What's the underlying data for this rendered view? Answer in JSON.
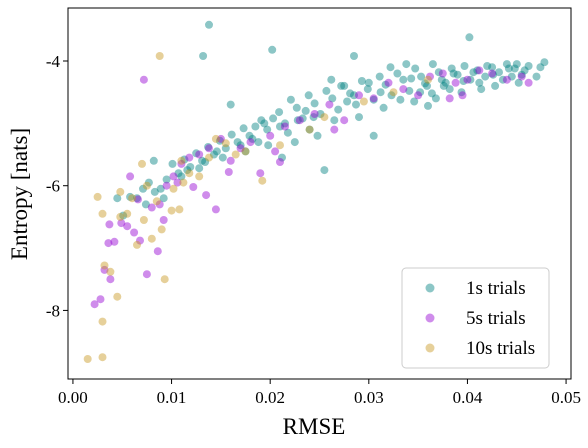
{
  "chart_data": {
    "type": "scatter",
    "title": "",
    "xlabel": "RMSE",
    "ylabel": "Entropy [nats]",
    "xlim": [
      -0.0005,
      0.0505
    ],
    "ylim": [
      -9.1,
      -3.15
    ],
    "xticks": [
      0.0,
      0.01,
      0.02,
      0.03,
      0.04,
      0.05
    ],
    "xtick_labels": [
      "0.00",
      "0.01",
      "0.02",
      "0.03",
      "0.04",
      "0.05"
    ],
    "yticks": [
      -8,
      -6,
      -4
    ],
    "ytick_labels": [
      "-8",
      "-6",
      "-4"
    ],
    "grid": false,
    "legend_position": "lower-right",
    "marker_alpha": 0.45,
    "series": [
      {
        "name": "1s trials",
        "color": "#008080",
        "points": [
          [
            0.0138,
            -3.42
          ],
          [
            0.0132,
            -3.92
          ],
          [
            0.0202,
            -3.82
          ],
          [
            0.0285,
            -3.92
          ],
          [
            0.0402,
            -3.62
          ],
          [
            0.0478,
            -4.02
          ],
          [
            0.0462,
            -4.08
          ],
          [
            0.0455,
            -4.22
          ],
          [
            0.0448,
            -4.12
          ],
          [
            0.044,
            -4.05
          ],
          [
            0.0432,
            -4.18
          ],
          [
            0.0425,
            -4.1
          ],
          [
            0.0418,
            -4.25
          ],
          [
            0.041,
            -4.15
          ],
          [
            0.0403,
            -4.3
          ],
          [
            0.0397,
            -4.08
          ],
          [
            0.039,
            -4.22
          ],
          [
            0.0384,
            -4.12
          ],
          [
            0.0378,
            -4.35
          ],
          [
            0.0371,
            -4.18
          ],
          [
            0.0365,
            -4.05
          ],
          [
            0.0359,
            -4.4
          ],
          [
            0.0353,
            -4.25
          ],
          [
            0.0347,
            -4.12
          ],
          [
            0.0341,
            -4.48
          ],
          [
            0.0335,
            -4.3
          ],
          [
            0.0329,
            -4.2
          ],
          [
            0.0323,
            -4.55
          ],
          [
            0.0317,
            -4.38
          ],
          [
            0.0311,
            -4.25
          ],
          [
            0.0305,
            -4.62
          ],
          [
            0.0299,
            -4.45
          ],
          [
            0.0293,
            -4.32
          ],
          [
            0.0287,
            -4.7
          ],
          [
            0.0281,
            -4.52
          ],
          [
            0.0275,
            -4.4
          ],
          [
            0.0269,
            -4.78
          ],
          [
            0.0263,
            -4.6
          ],
          [
            0.0257,
            -4.48
          ],
          [
            0.0251,
            -4.85
          ],
          [
            0.0245,
            -4.68
          ],
          [
            0.0239,
            -4.55
          ],
          [
            0.0233,
            -4.92
          ],
          [
            0.0227,
            -4.75
          ],
          [
            0.0221,
            -4.62
          ],
          [
            0.0215,
            -5.0
          ],
          [
            0.0209,
            -4.82
          ],
          [
            0.0203,
            -4.92
          ],
          [
            0.0197,
            -5.1
          ],
          [
            0.0191,
            -4.95
          ],
          [
            0.0185,
            -5.05
          ],
          [
            0.0179,
            -5.2
          ],
          [
            0.0173,
            -5.08
          ],
          [
            0.0167,
            -5.3
          ],
          [
            0.0161,
            -5.18
          ],
          [
            0.0155,
            -5.4
          ],
          [
            0.0149,
            -5.28
          ],
          [
            0.0143,
            -5.5
          ],
          [
            0.0137,
            -5.38
          ],
          [
            0.0131,
            -5.6
          ],
          [
            0.0125,
            -5.48
          ],
          [
            0.0119,
            -5.7
          ],
          [
            0.0113,
            -5.58
          ],
          [
            0.0107,
            -5.8
          ],
          [
            0.0101,
            -5.65
          ],
          [
            0.0095,
            -5.9
          ],
          [
            0.0089,
            -6.05
          ],
          [
            0.0083,
            -6.1
          ],
          [
            0.0077,
            -5.95
          ],
          [
            0.0071,
            -6.05
          ],
          [
            0.0065,
            -6.2
          ],
          [
            0.0058,
            -6.18
          ],
          [
            0.0051,
            -6.48
          ],
          [
            0.0045,
            -6.2
          ],
          [
            0.0082,
            -5.6
          ],
          [
            0.016,
            -4.7
          ],
          [
            0.0212,
            -5.55
          ],
          [
            0.0225,
            -5.3
          ],
          [
            0.0255,
            -5.75
          ],
          [
            0.0305,
            -5.2
          ],
          [
            0.0188,
            -5.3
          ],
          [
            0.0248,
            -5.2
          ],
          [
            0.0272,
            -4.4
          ],
          [
            0.0285,
            -4.55
          ],
          [
            0.03,
            -4.35
          ],
          [
            0.0322,
            -4.1
          ],
          [
            0.0338,
            -4.05
          ],
          [
            0.0352,
            -4.5
          ],
          [
            0.0368,
            -4.6
          ],
          [
            0.0382,
            -4.45
          ],
          [
            0.0394,
            -4.5
          ],
          [
            0.0412,
            -4.35
          ],
          [
            0.0428,
            -4.4
          ],
          [
            0.0445,
            -4.25
          ],
          [
            0.0458,
            -4.15
          ],
          [
            0.047,
            -4.25
          ],
          [
            0.036,
            -4.72
          ],
          [
            0.0346,
            -4.65
          ],
          [
            0.0315,
            -4.75
          ],
          [
            0.029,
            -4.9
          ],
          [
            0.0265,
            -4.95
          ],
          [
            0.024,
            -5.1
          ],
          [
            0.0218,
            -5.15
          ],
          [
            0.0198,
            -5.35
          ],
          [
            0.0175,
            -5.45
          ],
          [
            0.0152,
            -5.55
          ],
          [
            0.0128,
            -5.72
          ],
          [
            0.011,
            -5.85
          ],
          [
            0.0092,
            -6.2
          ],
          [
            0.0074,
            -6.3
          ],
          [
            0.0262,
            -4.3
          ],
          [
            0.0278,
            -4.65
          ],
          [
            0.0312,
            -4.5
          ],
          [
            0.0332,
            -4.62
          ],
          [
            0.0374,
            -4.3
          ],
          [
            0.0386,
            -4.2
          ],
          [
            0.0406,
            -4.18
          ],
          [
            0.042,
            -4.08
          ],
          [
            0.0436,
            -4.3
          ],
          [
            0.0452,
            -4.35
          ],
          [
            0.0228,
            -4.95
          ],
          [
            0.0236,
            -4.8
          ],
          [
            0.0244,
            -4.9
          ],
          [
            0.021,
            -5.05
          ],
          [
            0.0194,
            -5.0
          ],
          [
            0.0182,
            -5.25
          ],
          [
            0.017,
            -5.35
          ],
          [
            0.0146,
            -5.45
          ],
          [
            0.0134,
            -5.62
          ],
          [
            0.0116,
            -5.75
          ],
          [
            0.0343,
            -4.28
          ],
          [
            0.0357,
            -4.36
          ],
          [
            0.0364,
            -4.52
          ],
          [
            0.0376,
            -4.4
          ],
          [
            0.0396,
            -4.32
          ],
          [
            0.0414,
            -4.45
          ],
          [
            0.0426,
            -4.22
          ],
          [
            0.0442,
            -4.12
          ],
          [
            0.045,
            -4.05
          ],
          [
            0.0474,
            -4.1
          ]
        ]
      },
      {
        "name": "5s trials",
        "color": "#9400D3",
        "points": [
          [
            0.0072,
            -4.3
          ],
          [
            0.0022,
            -7.9
          ],
          [
            0.0028,
            -7.82
          ],
          [
            0.0032,
            -7.35
          ],
          [
            0.0038,
            -7.5
          ],
          [
            0.0036,
            -6.92
          ],
          [
            0.0042,
            -6.9
          ],
          [
            0.0037,
            -6.62
          ],
          [
            0.0049,
            -6.6
          ],
          [
            0.0055,
            -6.65
          ],
          [
            0.0062,
            -6.75
          ],
          [
            0.0068,
            -6.88
          ],
          [
            0.0075,
            -7.42
          ],
          [
            0.0086,
            -7.05
          ],
          [
            0.008,
            -6.35
          ],
          [
            0.0088,
            -6.3
          ],
          [
            0.0095,
            -6.0
          ],
          [
            0.0102,
            -5.85
          ],
          [
            0.011,
            -5.65
          ],
          [
            0.0118,
            -5.55
          ],
          [
            0.0128,
            -5.5
          ],
          [
            0.0138,
            -5.4
          ],
          [
            0.0145,
            -6.38
          ],
          [
            0.015,
            -5.25
          ],
          [
            0.016,
            -5.6
          ],
          [
            0.017,
            -5.4
          ],
          [
            0.018,
            -5.3
          ],
          [
            0.019,
            -5.8
          ],
          [
            0.0205,
            -5.45
          ],
          [
            0.0215,
            -5.05
          ],
          [
            0.023,
            -4.95
          ],
          [
            0.0245,
            -4.85
          ],
          [
            0.026,
            -4.7
          ],
          [
            0.0275,
            -4.95
          ],
          [
            0.029,
            -4.55
          ],
          [
            0.0305,
            -4.6
          ],
          [
            0.032,
            -4.35
          ],
          [
            0.0335,
            -4.45
          ],
          [
            0.035,
            -4.55
          ],
          [
            0.0362,
            -4.25
          ],
          [
            0.0375,
            -4.2
          ],
          [
            0.0388,
            -4.35
          ],
          [
            0.04,
            -4.3
          ],
          [
            0.0412,
            -4.15
          ],
          [
            0.0425,
            -4.2
          ],
          [
            0.044,
            -4.3
          ],
          [
            0.0455,
            -4.25
          ],
          [
            0.0462,
            -4.35
          ],
          [
            0.0395,
            -4.55
          ],
          [
            0.0382,
            -4.6
          ],
          [
            0.0058,
            -5.85
          ],
          [
            0.0066,
            -6.22
          ],
          [
            0.0092,
            -6.55
          ],
          [
            0.0135,
            -6.15
          ],
          [
            0.02,
            -5.2
          ],
          [
            0.0122,
            -6.02
          ],
          [
            0.0106,
            -5.95
          ],
          [
            0.0158,
            -5.78
          ],
          [
            0.021,
            -5.62
          ],
          [
            0.0265,
            -5.1
          ]
        ]
      },
      {
        "name": "10s trials",
        "color": "#C8961E",
        "points": [
          [
            0.0088,
            -3.92
          ],
          [
            0.0015,
            -8.78
          ],
          [
            0.003,
            -8.75
          ],
          [
            0.003,
            -8.18
          ],
          [
            0.0045,
            -7.78
          ],
          [
            0.0038,
            -7.38
          ],
          [
            0.0032,
            -7.28
          ],
          [
            0.003,
            -6.45
          ],
          [
            0.0025,
            -6.18
          ],
          [
            0.0055,
            -6.45
          ],
          [
            0.0048,
            -6.1
          ],
          [
            0.006,
            -6.2
          ],
          [
            0.007,
            -5.65
          ],
          [
            0.0075,
            -6.0
          ],
          [
            0.0072,
            -6.55
          ],
          [
            0.008,
            -6.85
          ],
          [
            0.0093,
            -7.5
          ],
          [
            0.009,
            -6.7
          ],
          [
            0.01,
            -6.4
          ],
          [
            0.0108,
            -6.38
          ],
          [
            0.0112,
            -5.95
          ],
          [
            0.0118,
            -5.8
          ],
          [
            0.0128,
            -5.85
          ],
          [
            0.0138,
            -5.55
          ],
          [
            0.0145,
            -5.25
          ],
          [
            0.0155,
            -5.32
          ],
          [
            0.0165,
            -5.5
          ],
          [
            0.0175,
            -5.45
          ],
          [
            0.0192,
            -5.92
          ],
          [
            0.021,
            -5.35
          ],
          [
            0.024,
            -5.1
          ],
          [
            0.0255,
            -4.9
          ],
          [
            0.0295,
            -4.65
          ],
          [
            0.0325,
            -4.5
          ],
          [
            0.036,
            -4.3
          ],
          [
            0.011,
            -5.6
          ],
          [
            0.0102,
            -6.05
          ],
          [
            0.0085,
            -6.25
          ],
          [
            0.0065,
            -6.95
          ],
          [
            0.0048,
            -6.5
          ]
        ]
      }
    ]
  }
}
